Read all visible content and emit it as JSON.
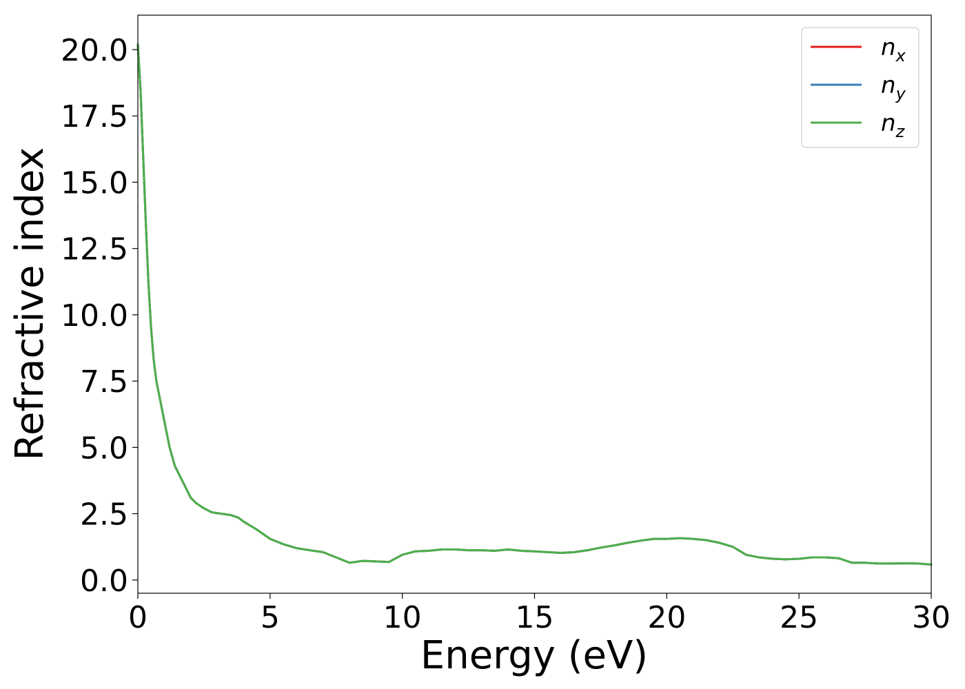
{
  "chart_data": {
    "type": "line",
    "xlabel": "Energy (eV)",
    "ylabel": "Refractive index",
    "xlim": [
      0,
      30
    ],
    "ylim": [
      -0.5,
      21.3
    ],
    "xticks": [
      0,
      5,
      10,
      15,
      20,
      25,
      30
    ],
    "xtick_labels": [
      "0",
      "5",
      "10",
      "15",
      "20",
      "25",
      "30"
    ],
    "yticks": [
      0,
      2.5,
      5,
      7.5,
      10,
      12.5,
      15,
      17.5,
      20
    ],
    "ytick_labels": [
      "0.0",
      "2.5",
      "5.0",
      "7.5",
      "10.0",
      "12.5",
      "15.0",
      "17.5",
      "20.0"
    ],
    "grid": false,
    "legend_position": "top-right",
    "x": [
      0,
      0.1,
      0.2,
      0.3,
      0.4,
      0.5,
      0.6,
      0.7,
      0.8,
      0.9,
      1.0,
      1.2,
      1.4,
      1.6,
      1.8,
      2.0,
      2.2,
      2.5,
      2.8,
      3.0,
      3.5,
      3.8,
      4.0,
      4.5,
      5.0,
      5.5,
      6.0,
      6.5,
      7.0,
      7.5,
      8.0,
      8.5,
      9.0,
      9.5,
      10.0,
      10.5,
      11.0,
      11.5,
      12.0,
      12.5,
      13.0,
      13.5,
      14.0,
      14.5,
      15.0,
      15.5,
      16.0,
      16.5,
      17.0,
      17.5,
      18.0,
      18.5,
      19.0,
      19.5,
      20.0,
      20.5,
      21.0,
      21.5,
      22.0,
      22.5,
      23.0,
      23.5,
      24.0,
      24.5,
      25.0,
      25.5,
      26.0,
      26.5,
      27.0,
      27.5,
      28.0,
      28.5,
      29.0,
      29.5,
      30.0
    ],
    "series": [
      {
        "name": "n_x",
        "label_base": "n",
        "label_sub": "x",
        "color": "#e41a1c",
        "y": [
          20.2,
          18.5,
          16.0,
          13.5,
          11.2,
          9.5,
          8.3,
          7.5,
          7.0,
          6.5,
          6.0,
          5.0,
          4.3,
          3.9,
          3.5,
          3.1,
          2.9,
          2.7,
          2.55,
          2.52,
          2.45,
          2.35,
          2.2,
          1.9,
          1.55,
          1.35,
          1.2,
          1.12,
          1.05,
          0.85,
          0.65,
          0.72,
          0.7,
          0.68,
          0.95,
          1.08,
          1.1,
          1.15,
          1.15,
          1.12,
          1.12,
          1.1,
          1.15,
          1.1,
          1.08,
          1.05,
          1.02,
          1.05,
          1.12,
          1.22,
          1.3,
          1.4,
          1.48,
          1.55,
          1.55,
          1.58,
          1.55,
          1.5,
          1.4,
          1.25,
          0.95,
          0.85,
          0.8,
          0.78,
          0.8,
          0.85,
          0.85,
          0.82,
          0.65,
          0.65,
          0.62,
          0.62,
          0.63,
          0.62,
          0.58
        ]
      },
      {
        "name": "n_y",
        "label_base": "n",
        "label_sub": "y",
        "color": "#377eb8",
        "y": [
          20.2,
          18.5,
          16.0,
          13.5,
          11.2,
          9.5,
          8.3,
          7.5,
          7.0,
          6.5,
          6.0,
          5.0,
          4.3,
          3.9,
          3.5,
          3.1,
          2.9,
          2.7,
          2.55,
          2.52,
          2.45,
          2.35,
          2.2,
          1.9,
          1.55,
          1.35,
          1.2,
          1.12,
          1.05,
          0.85,
          0.65,
          0.72,
          0.7,
          0.68,
          0.95,
          1.08,
          1.1,
          1.15,
          1.15,
          1.12,
          1.12,
          1.1,
          1.15,
          1.1,
          1.08,
          1.05,
          1.02,
          1.05,
          1.12,
          1.22,
          1.3,
          1.4,
          1.48,
          1.55,
          1.55,
          1.58,
          1.55,
          1.5,
          1.4,
          1.25,
          0.95,
          0.85,
          0.8,
          0.78,
          0.8,
          0.85,
          0.85,
          0.82,
          0.65,
          0.65,
          0.62,
          0.62,
          0.63,
          0.62,
          0.58
        ]
      },
      {
        "name": "n_z",
        "label_base": "n",
        "label_sub": "z",
        "color": "#4daf4a",
        "y": [
          20.2,
          18.5,
          16.0,
          13.5,
          11.2,
          9.5,
          8.3,
          7.5,
          7.0,
          6.5,
          6.0,
          5.0,
          4.3,
          3.9,
          3.5,
          3.1,
          2.9,
          2.7,
          2.55,
          2.52,
          2.45,
          2.35,
          2.2,
          1.9,
          1.55,
          1.35,
          1.2,
          1.12,
          1.05,
          0.85,
          0.65,
          0.72,
          0.7,
          0.68,
          0.95,
          1.08,
          1.1,
          1.15,
          1.15,
          1.12,
          1.12,
          1.1,
          1.15,
          1.1,
          1.08,
          1.05,
          1.02,
          1.05,
          1.12,
          1.22,
          1.3,
          1.4,
          1.48,
          1.55,
          1.55,
          1.58,
          1.55,
          1.5,
          1.4,
          1.25,
          0.95,
          0.85,
          0.8,
          0.78,
          0.8,
          0.85,
          0.85,
          0.82,
          0.65,
          0.65,
          0.62,
          0.62,
          0.63,
          0.62,
          0.58
        ]
      }
    ]
  }
}
